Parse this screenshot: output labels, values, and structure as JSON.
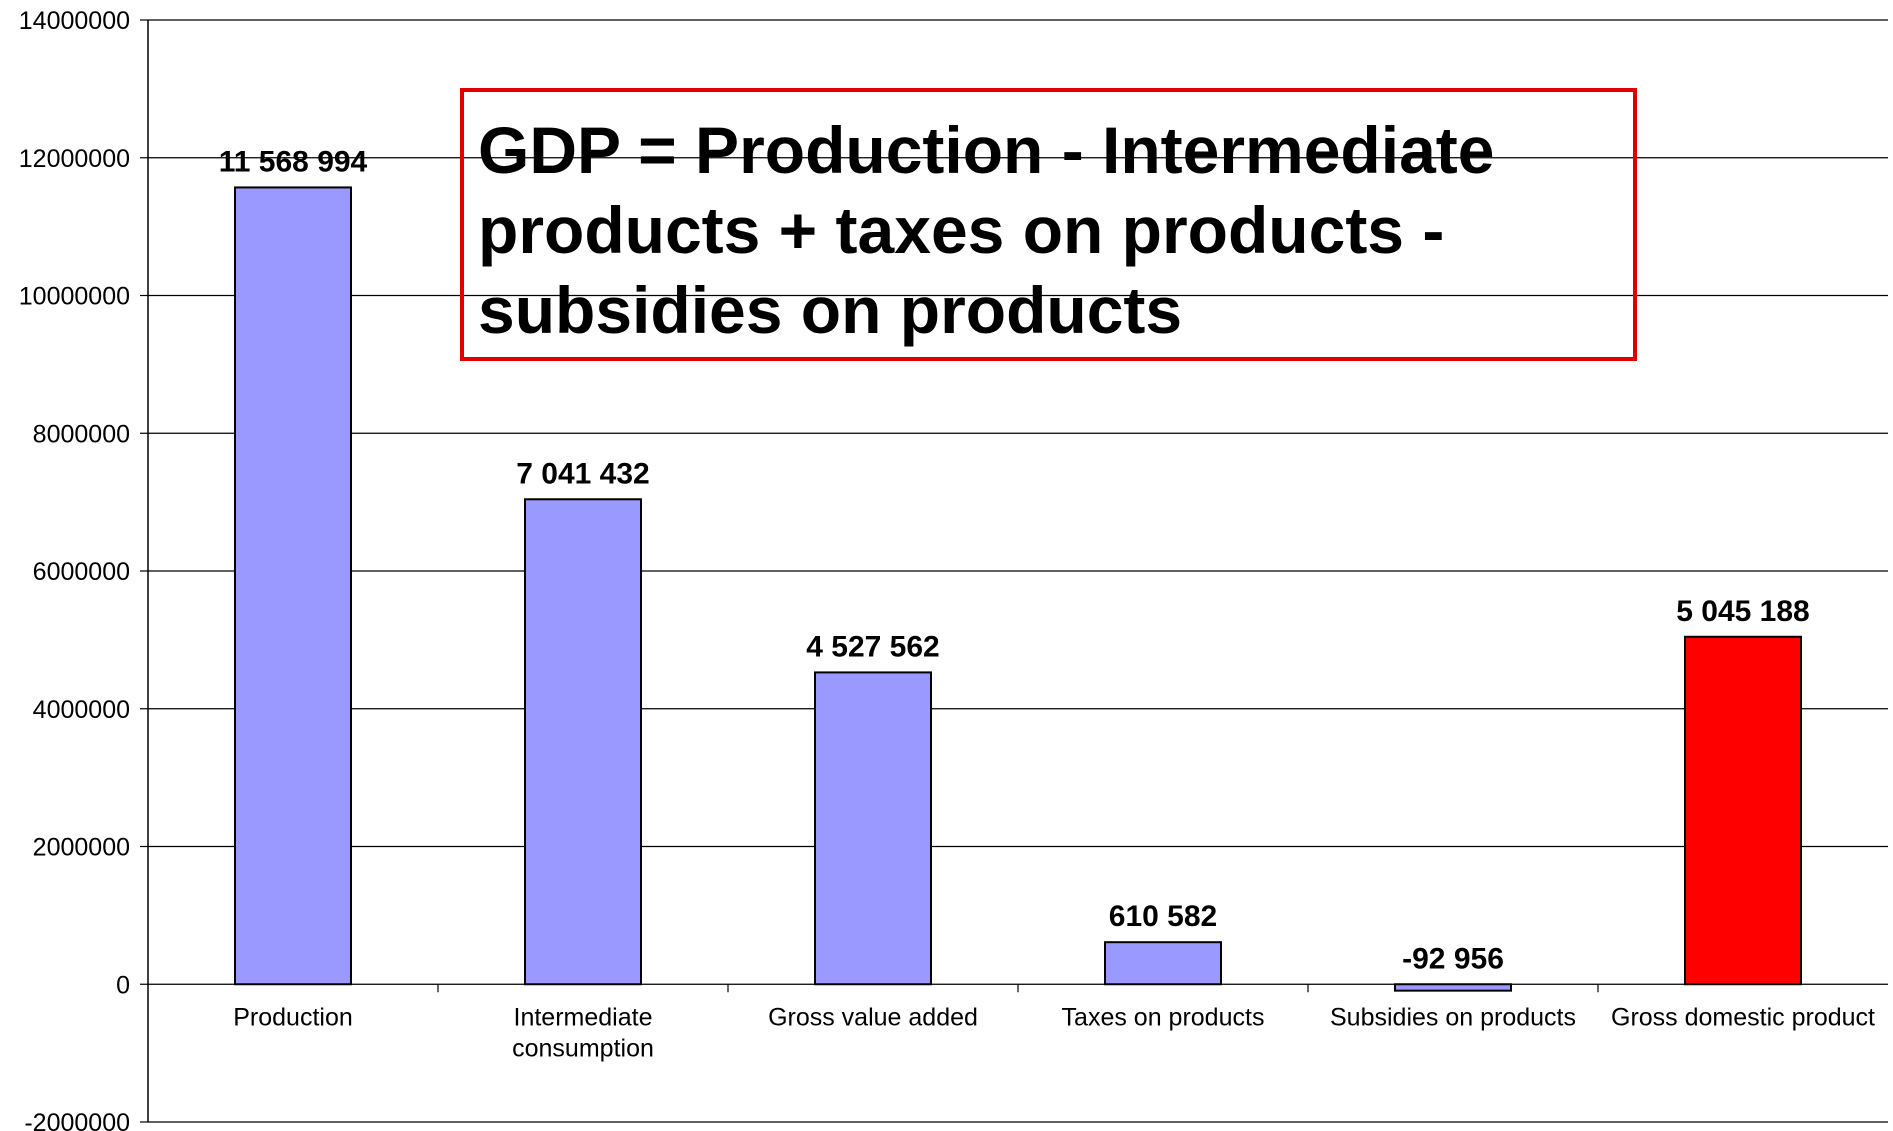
{
  "annotation": {
    "text": "GDP = Production - Intermediate products + taxes on products - subsidies on products",
    "border_color": "#e00000"
  },
  "chart_data": {
    "type": "bar",
    "title": "",
    "xlabel": "",
    "ylabel": "",
    "ylim": [
      -2000000,
      14000000
    ],
    "yticks": [
      -2000000,
      0,
      2000000,
      4000000,
      6000000,
      8000000,
      10000000,
      12000000,
      14000000
    ],
    "ytick_labels": [
      "-2000000",
      "0",
      "2000000",
      "4000000",
      "6000000",
      "8000000",
      "10000000",
      "12000000",
      "14000000"
    ],
    "grid": true,
    "categories": [
      [
        "Production"
      ],
      [
        "Intermediate",
        "consumption"
      ],
      [
        "Gross value added"
      ],
      [
        "Taxes on products"
      ],
      [
        "Subsidies on products"
      ],
      [
        "Gross domestic product"
      ]
    ],
    "values": [
      11568994,
      7041432,
      4527562,
      610582,
      -92956,
      5045188
    ],
    "data_labels": [
      "11 568 994",
      "7 041 432",
      "4 527 562",
      "610 582",
      "-92 956",
      "5 045 188"
    ],
    "bar_colors": [
      "#9999ff",
      "#9999ff",
      "#9999ff",
      "#9999ff",
      "#9999ff",
      "#ff0000"
    ]
  }
}
